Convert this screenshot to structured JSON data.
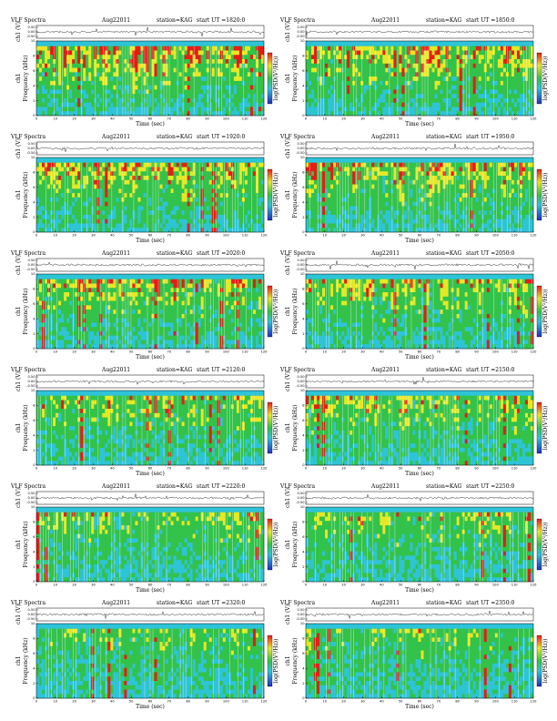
{
  "header": {
    "title": "VLF Spectra",
    "date": "Aug22011",
    "station": "station=KAG",
    "start_prefix": "start  UT  ="
  },
  "axis_labels": {
    "time": "Time  (sec)",
    "ch": "ch1 (V)",
    "ch_short": "ch1",
    "freq": "Frequency (kHz)",
    "colorbar": "log(PSD(V²/Hz))"
  },
  "colors": {
    "low": "#1f2fbf",
    "mid_low": "#2ec4d8",
    "mid": "#33c24a",
    "mid_high": "#e8e826",
    "high": "#e81b16",
    "white": "#ffffff"
  },
  "chart_data": [
    {
      "type": "heatmap",
      "start_ut": "1820:0",
      "xlim": [
        0,
        120
      ],
      "ylim": [
        0,
        10
      ],
      "xticks": [
        0,
        10,
        20,
        30,
        40,
        50,
        60,
        70,
        80,
        90,
        100,
        110,
        120
      ],
      "yticks": [
        0,
        2,
        4,
        6,
        8,
        10
      ],
      "waveform_ticks": [
        "0.50",
        "0.00",
        "-0.50"
      ]
    },
    {
      "type": "heatmap",
      "start_ut": "1850:0",
      "xlim": [
        0,
        120
      ],
      "ylim": [
        0,
        10
      ],
      "xticks": [
        0,
        10,
        20,
        30,
        40,
        50,
        60,
        70,
        80,
        90,
        100,
        110,
        120
      ],
      "yticks": [
        0,
        2,
        4,
        6,
        8,
        10
      ],
      "waveform_ticks": [
        "0.50",
        "0.00",
        "-0.50"
      ]
    },
    {
      "type": "heatmap",
      "start_ut": "1920:0",
      "xlim": [
        0,
        120
      ],
      "ylim": [
        0,
        10
      ],
      "xticks": [
        0,
        10,
        20,
        30,
        40,
        50,
        60,
        70,
        80,
        90,
        100,
        110,
        120
      ],
      "yticks": [
        0,
        2,
        4,
        6,
        8,
        10
      ],
      "waveform_ticks": [
        "0.50",
        "0.00",
        "-0.50"
      ]
    },
    {
      "type": "heatmap",
      "start_ut": "1950:0",
      "xlim": [
        0,
        120
      ],
      "ylim": [
        0,
        10
      ],
      "xticks": [
        0,
        10,
        20,
        30,
        40,
        50,
        60,
        70,
        80,
        90,
        100,
        110,
        120
      ],
      "yticks": [
        0,
        2,
        4,
        6,
        8,
        10
      ],
      "waveform_ticks": [
        "0.50",
        "0.00",
        "-0.50"
      ]
    },
    {
      "type": "heatmap",
      "start_ut": "2020:0",
      "xlim": [
        0,
        120
      ],
      "ylim": [
        0,
        10
      ],
      "xticks": [
        0,
        10,
        20,
        30,
        40,
        50,
        60,
        70,
        80,
        90,
        100,
        110,
        120
      ],
      "yticks": [
        0,
        2,
        4,
        6,
        8,
        10
      ],
      "waveform_ticks": [
        "0.50",
        "0.00",
        "-0.50"
      ]
    },
    {
      "type": "heatmap",
      "start_ut": "2050:0",
      "xlim": [
        0,
        120
      ],
      "ylim": [
        0,
        10
      ],
      "xticks": [
        0,
        10,
        20,
        30,
        40,
        50,
        60,
        70,
        80,
        90,
        100,
        110,
        120
      ],
      "yticks": [
        0,
        2,
        4,
        6,
        8,
        10
      ],
      "waveform_ticks": [
        "0.50",
        "0.00",
        "-0.50"
      ]
    },
    {
      "type": "heatmap",
      "start_ut": "2120:0",
      "xlim": [
        0,
        120
      ],
      "ylim": [
        0,
        10
      ],
      "xticks": [
        0,
        10,
        20,
        30,
        40,
        50,
        60,
        70,
        80,
        90,
        100,
        110,
        120
      ],
      "yticks": [
        0,
        2,
        4,
        6,
        8,
        10
      ],
      "waveform_ticks": [
        "0.50",
        "0.00",
        "-0.50"
      ]
    },
    {
      "type": "heatmap",
      "start_ut": "2150:0",
      "xlim": [
        0,
        120
      ],
      "ylim": [
        0,
        10
      ],
      "xticks": [
        0,
        10,
        20,
        30,
        40,
        50,
        60,
        70,
        80,
        90,
        100,
        110,
        120
      ],
      "yticks": [
        0,
        2,
        4,
        6,
        8,
        10
      ],
      "waveform_ticks": [
        "0.50",
        "0.00",
        "-0.50"
      ]
    },
    {
      "type": "heatmap",
      "start_ut": "2220:0",
      "xlim": [
        0,
        120
      ],
      "ylim": [
        0,
        10
      ],
      "xticks": [
        0,
        10,
        20,
        30,
        40,
        50,
        60,
        70,
        80,
        90,
        100,
        110,
        120
      ],
      "yticks": [
        0,
        2,
        4,
        6,
        8,
        10
      ],
      "waveform_ticks": [
        "0.50",
        "0.00",
        "-0.50"
      ]
    },
    {
      "type": "heatmap",
      "start_ut": "2250:0",
      "xlim": [
        0,
        120
      ],
      "ylim": [
        0,
        10
      ],
      "xticks": [
        0,
        10,
        20,
        30,
        40,
        50,
        60,
        70,
        80,
        90,
        100,
        110,
        120
      ],
      "yticks": [
        0,
        2,
        4,
        6,
        8,
        10
      ],
      "waveform_ticks": [
        "0.50",
        "0.00",
        "-0.50"
      ]
    },
    {
      "type": "heatmap",
      "start_ut": "2320:0",
      "xlim": [
        0,
        120
      ],
      "ylim": [
        0,
        10
      ],
      "xticks": [
        0,
        10,
        20,
        30,
        40,
        50,
        60,
        70,
        80,
        90,
        100,
        110,
        120
      ],
      "yticks": [
        0,
        2,
        4,
        6,
        8,
        10
      ],
      "waveform_ticks": [
        "0.50",
        "0.00",
        "-0.50"
      ]
    },
    {
      "type": "heatmap",
      "start_ut": "2350:0",
      "xlim": [
        0,
        120
      ],
      "ylim": [
        0,
        10
      ],
      "xticks": [
        0,
        10,
        20,
        30,
        40,
        50,
        60,
        70,
        80,
        90,
        100,
        110,
        120
      ],
      "yticks": [
        0,
        2,
        4,
        6,
        8,
        10
      ],
      "waveform_ticks": [
        "0.50",
        "0.00",
        "-0.50"
      ]
    }
  ]
}
